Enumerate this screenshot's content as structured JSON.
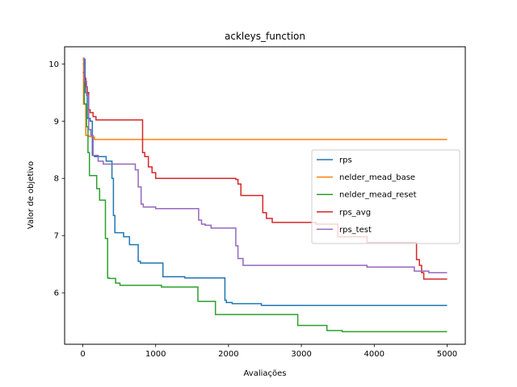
{
  "chart_data": {
    "type": "line",
    "title": "ackleys_function",
    "xlabel": "Avaliações",
    "ylabel": "Valor de objetivo",
    "xlim": [
      -250,
      5250
    ],
    "ylim": [
      5.1,
      10.3
    ],
    "xticks": [
      0,
      1000,
      2000,
      3000,
      4000,
      5000
    ],
    "xtick_labels": [
      "0",
      "1000",
      "2000",
      "3000",
      "4000",
      "5000"
    ],
    "yticks": [
      6,
      7,
      8,
      9,
      10
    ],
    "ytick_labels": [
      "6",
      "7",
      "8",
      "9",
      "10"
    ],
    "grid": false,
    "legend_position": "center-right",
    "step": true,
    "series": [
      {
        "name": "rps",
        "color": "#1f77b4",
        "x": [
          0,
          30,
          60,
          100,
          130,
          160,
          320,
          400,
          420,
          440,
          560,
          640,
          760,
          790,
          1100,
          1400,
          1950,
          1970,
          2050,
          2450,
          5000
        ],
        "y": [
          10.08,
          9.5,
          9.05,
          9.0,
          8.4,
          8.38,
          8.3,
          8.0,
          7.35,
          7.05,
          6.98,
          6.84,
          6.55,
          6.52,
          6.28,
          6.26,
          5.87,
          5.83,
          5.81,
          5.78,
          5.78
        ]
      },
      {
        "name": "nelder_mead_base",
        "color": "#ff7f0e",
        "x": [
          0,
          10,
          40,
          80,
          120,
          160,
          5000
        ],
        "y": [
          10.08,
          9.3,
          8.75,
          8.73,
          8.72,
          8.68,
          8.68
        ]
      },
      {
        "name": "nelder_mead_reset",
        "color": "#2ca02c",
        "x": [
          0,
          20,
          50,
          70,
          90,
          190,
          230,
          310,
          340,
          360,
          450,
          510,
          1080,
          1580,
          1820,
          2950,
          3350,
          3560,
          5000
        ],
        "y": [
          10.0,
          9.3,
          8.9,
          8.45,
          8.05,
          7.82,
          7.62,
          6.95,
          6.26,
          6.25,
          6.17,
          6.13,
          6.1,
          5.85,
          5.62,
          5.43,
          5.34,
          5.32,
          5.32
        ]
      },
      {
        "name": "rps_avg",
        "color": "#d62728",
        "x": [
          0,
          20,
          40,
          60,
          80,
          100,
          140,
          180,
          820,
          850,
          900,
          950,
          1000,
          2100,
          2130,
          2170,
          2470,
          2520,
          2600,
          3200,
          3500,
          3900,
          4580,
          4620,
          4650,
          4680,
          5000
        ],
        "y": [
          9.85,
          9.75,
          9.6,
          9.5,
          9.2,
          9.15,
          9.08,
          9.02,
          8.45,
          8.38,
          8.2,
          8.1,
          8.0,
          7.98,
          7.9,
          7.7,
          7.4,
          7.3,
          7.23,
          7.2,
          6.98,
          6.88,
          6.58,
          6.48,
          6.35,
          6.24,
          6.24
        ]
      },
      {
        "name": "rps_test",
        "color": "#9467bd",
        "x": [
          0,
          20,
          50,
          80,
          110,
          140,
          210,
          280,
          720,
          760,
          800,
          830,
          1000,
          1590,
          1630,
          1680,
          1760,
          2100,
          2130,
          2150,
          2200,
          3900,
          4550,
          4750,
          5000
        ],
        "y": [
          10.1,
          9.7,
          9.45,
          8.85,
          8.75,
          8.4,
          8.3,
          8.25,
          8.15,
          7.85,
          7.55,
          7.5,
          7.47,
          7.27,
          7.2,
          7.18,
          7.13,
          6.82,
          6.6,
          6.6,
          6.48,
          6.45,
          6.38,
          6.35,
          6.35
        ]
      }
    ]
  }
}
